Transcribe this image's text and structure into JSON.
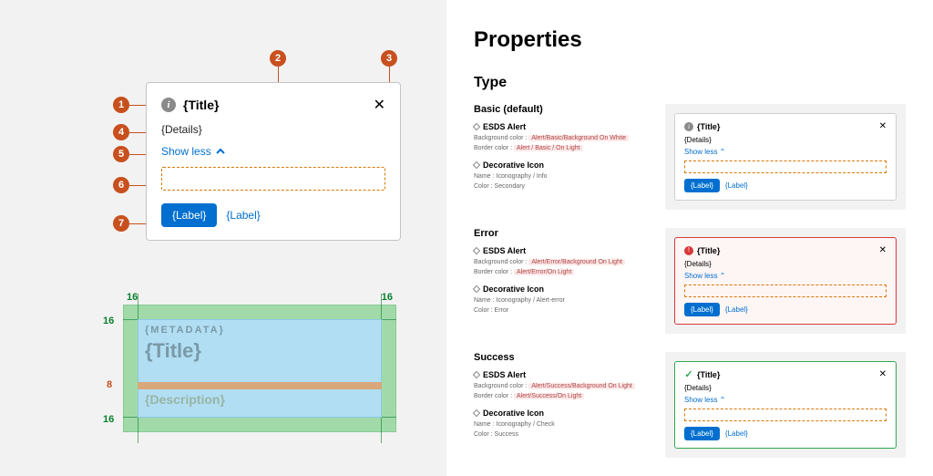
{
  "main_alert": {
    "title": "{Title}",
    "details": "{Details}",
    "show_less": "Show less",
    "primary_label": "{Label}",
    "secondary_label": "{Label}"
  },
  "callouts": [
    "1",
    "2",
    "3",
    "4",
    "5",
    "6",
    "7"
  ],
  "spacing": {
    "top_left": "16",
    "top_right": "16",
    "side_top": "16",
    "side_mid": "8",
    "side_bot": "16",
    "metadata": "{METADATA}",
    "title": "{Title}",
    "desc": "{Description}",
    "colors": {
      "outer": "#8dd596",
      "inner": "#b1def3",
      "band": "#d9a77a",
      "label": "#0a7f2e"
    }
  },
  "properties": {
    "heading": "Properties",
    "section": "Type",
    "rows": [
      {
        "name": "Basic (default)",
        "variant": "basic",
        "esds_title": "ESDS Alert",
        "bg_label": "Background color :",
        "bg_val": "Alert/Basic/Background On White",
        "border_label": "Border color :",
        "border_val": "Alert / Basic / On Light",
        "icon_title": "Decorative Icon",
        "name_label": "Name :",
        "name_val": "Iconography / Info",
        "color_label": "Color :",
        "color_val": "Secondary"
      },
      {
        "name": "Error",
        "variant": "error",
        "esds_title": "ESDS Alert",
        "bg_label": "Background color :",
        "bg_val": "Alert/Error/Background On Light",
        "border_label": "Border color :",
        "border_val": "Alert/Error/On Light",
        "icon_title": "Decorative Icon",
        "name_label": "Name :",
        "name_val": "Iconography / Alert-error",
        "color_label": "Color :",
        "color_val": "Error"
      },
      {
        "name": "Success",
        "variant": "success",
        "esds_title": "ESDS Alert",
        "bg_label": "Background color :",
        "bg_val": "Alert/Success/Background On Light",
        "border_label": "Border color :",
        "border_val": "Alert/Success/On Light",
        "icon_title": "Decorative Icon",
        "name_label": "Name :",
        "name_val": "Iconography / Check",
        "color_label": "Color :",
        "color_val": "Success"
      }
    ],
    "mini": {
      "title": "{Title}",
      "details": "{Details}",
      "show_less": "Show less ⌃",
      "primary": "{Label}",
      "secondary": "{Label}"
    }
  },
  "colors": {
    "accent_orange": "#c8501e",
    "accent_blue": "#006fcf",
    "error": "#d93939",
    "success": "#2fa84f"
  }
}
